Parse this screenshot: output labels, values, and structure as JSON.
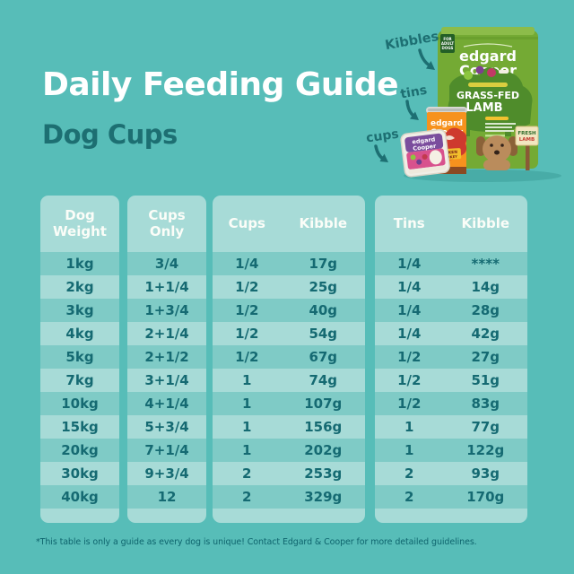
{
  "page": {
    "title": "Daily Feeding Guide",
    "subtitle": "Dog Cups",
    "footnote": "*This table is only a guide as every dog is unique! Contact Edgard & Cooper for more detailed guidelines."
  },
  "colors": {
    "background": "#57BDB8",
    "panel_light": "#A7DBD7",
    "row_dark": "#7FCBC6",
    "table_text": "#156A72",
    "header_text": "#FBFDF8",
    "accent_dark_teal": "#1D6F72",
    "bag_green": "#74AA34",
    "tin_orange": "#F6921E",
    "cup_pink": "#D8518D",
    "cup_purple": "#7B4D9D"
  },
  "product_labels": {
    "kibbles": "Kibbles",
    "tins": "tins",
    "cups": "cups"
  },
  "products": {
    "bag": {
      "badge_line1": "FOR",
      "badge_line2": "ADULT",
      "badge_line3": "DOGS",
      "brand_top": "edgard",
      "brand_bottom": "Cooper",
      "variety_top": "GRASS-FED",
      "variety_bottom": "LAMB",
      "sign_top": "FRESH",
      "sign_bottom": "LAMB"
    },
    "tin": {
      "brand_top": "edgard",
      "brand_bottom": "Cooper",
      "variety_top": "CHICKEN",
      "variety_bottom": "& TURKEY"
    },
    "cup": {
      "brand_top": "edgard",
      "brand_bottom": "Cooper"
    }
  },
  "table": {
    "panels": [
      {
        "id": "dog-weight",
        "headers": [
          "Dog",
          "Weight"
        ],
        "rows": [
          [
            "1kg"
          ],
          [
            "2kg"
          ],
          [
            "3kg"
          ],
          [
            "4kg"
          ],
          [
            "5kg"
          ],
          [
            "7kg"
          ],
          [
            "10kg"
          ],
          [
            "15kg"
          ],
          [
            "20kg"
          ],
          [
            "30kg"
          ],
          [
            "40kg"
          ]
        ]
      },
      {
        "id": "cups-only",
        "headers": [
          "Cups",
          "Only"
        ],
        "rows": [
          [
            "3/4"
          ],
          [
            "1+1/4"
          ],
          [
            "1+3/4"
          ],
          [
            "2+1/4"
          ],
          [
            "2+1/2"
          ],
          [
            "3+1/4"
          ],
          [
            "4+1/4"
          ],
          [
            "5+3/4"
          ],
          [
            "7+1/4"
          ],
          [
            "9+3/4"
          ],
          [
            "12"
          ]
        ]
      },
      {
        "id": "cups-kibble",
        "headers": [
          "Cups",
          "Kibble"
        ],
        "rows": [
          [
            "1/4",
            "17g"
          ],
          [
            "1/2",
            "25g"
          ],
          [
            "1/2",
            "40g"
          ],
          [
            "1/2",
            "54g"
          ],
          [
            "1/2",
            "67g"
          ],
          [
            "1",
            "74g"
          ],
          [
            "1",
            "107g"
          ],
          [
            "1",
            "156g"
          ],
          [
            "1",
            "202g"
          ],
          [
            "2",
            "253g"
          ],
          [
            "2",
            "329g"
          ]
        ]
      },
      {
        "id": "tins-kibble",
        "headers": [
          "Tins",
          "Kibble"
        ],
        "rows": [
          [
            "1/4",
            "****"
          ],
          [
            "1/4",
            "14g"
          ],
          [
            "1/4",
            "28g"
          ],
          [
            "1/4",
            "42g"
          ],
          [
            "1/2",
            "27g"
          ],
          [
            "1/2",
            "51g"
          ],
          [
            "1/2",
            "83g"
          ],
          [
            "1",
            "77g"
          ],
          [
            "1",
            "122g"
          ],
          [
            "2",
            "93g"
          ],
          [
            "2",
            "170g"
          ]
        ]
      }
    ]
  }
}
